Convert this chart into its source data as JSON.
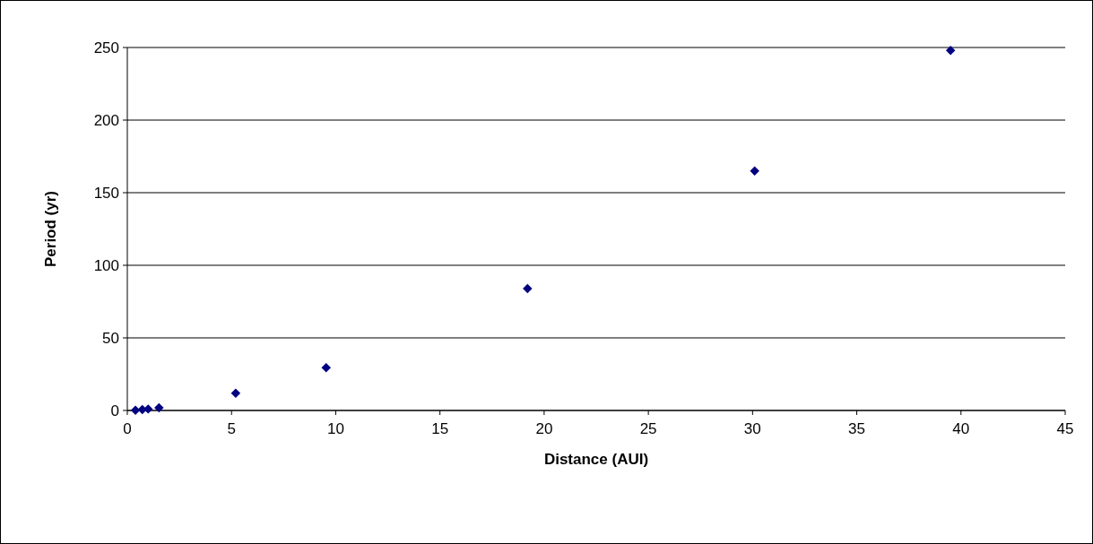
{
  "chart_data": {
    "type": "scatter",
    "xlabel": "Distance (AUI)",
    "ylabel": "Period (yr)",
    "x": [
      0.39,
      0.72,
      1,
      1.52,
      5.2,
      9.54,
      19.2,
      30.1,
      39.5
    ],
    "values": [
      0.2,
      0.6,
      1,
      1.9,
      11.9,
      29.5,
      84,
      165,
      248
    ],
    "color": "#000080",
    "marker": "diamond",
    "xlim": [
      0,
      45
    ],
    "xticks": [
      0,
      5,
      10,
      15,
      20,
      25,
      30,
      35,
      40,
      45
    ],
    "ylim": [
      0,
      250
    ],
    "yticks": [
      0,
      50,
      100,
      150,
      200,
      250
    ],
    "grid": "y"
  }
}
